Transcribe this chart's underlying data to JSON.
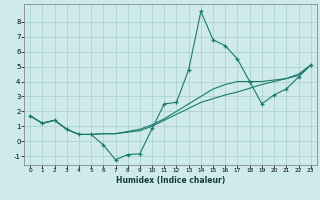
{
  "xlabel": "Humidex (Indice chaleur)",
  "line_color": "#1a7a6e",
  "bg_color": "#ceeaea",
  "grid_color": "#aacece",
  "xlim": [
    -0.5,
    23.5
  ],
  "ylim": [
    -1.6,
    9.2
  ],
  "xticks": [
    0,
    1,
    2,
    3,
    4,
    5,
    6,
    7,
    8,
    9,
    10,
    11,
    12,
    13,
    14,
    15,
    16,
    17,
    18,
    19,
    20,
    21,
    22,
    23
  ],
  "yticks": [
    -1,
    0,
    1,
    2,
    3,
    4,
    5,
    6,
    7,
    8
  ],
  "series1": [
    [
      0,
      1.7
    ],
    [
      1,
      1.2
    ],
    [
      2,
      1.4
    ],
    [
      3,
      0.8
    ],
    [
      4,
      0.45
    ],
    [
      5,
      0.45
    ],
    [
      6,
      -0.25
    ],
    [
      7,
      -1.25
    ],
    [
      8,
      -0.9
    ],
    [
      9,
      -0.85
    ],
    [
      10,
      0.85
    ],
    [
      11,
      2.5
    ],
    [
      12,
      2.6
    ],
    [
      13,
      4.8
    ],
    [
      14,
      8.7
    ],
    [
      15,
      6.8
    ],
    [
      16,
      6.4
    ],
    [
      17,
      5.5
    ],
    [
      18,
      4.0
    ],
    [
      19,
      2.5
    ],
    [
      20,
      3.1
    ],
    [
      21,
      3.5
    ],
    [
      22,
      4.3
    ],
    [
      23,
      5.1
    ]
  ],
  "series2": [
    [
      0,
      1.7
    ],
    [
      1,
      1.2
    ],
    [
      2,
      1.4
    ],
    [
      3,
      0.8
    ],
    [
      4,
      0.45
    ],
    [
      5,
      0.45
    ],
    [
      6,
      0.5
    ],
    [
      7,
      0.5
    ],
    [
      8,
      0.6
    ],
    [
      9,
      0.7
    ],
    [
      10,
      1.0
    ],
    [
      11,
      1.4
    ],
    [
      12,
      1.8
    ],
    [
      13,
      2.2
    ],
    [
      14,
      2.6
    ],
    [
      15,
      2.85
    ],
    [
      16,
      3.1
    ],
    [
      17,
      3.3
    ],
    [
      18,
      3.55
    ],
    [
      19,
      3.8
    ],
    [
      20,
      4.0
    ],
    [
      21,
      4.2
    ],
    [
      22,
      4.5
    ],
    [
      23,
      5.1
    ]
  ],
  "series3": [
    [
      0,
      1.7
    ],
    [
      1,
      1.2
    ],
    [
      2,
      1.4
    ],
    [
      3,
      0.8
    ],
    [
      4,
      0.45
    ],
    [
      5,
      0.45
    ],
    [
      6,
      0.5
    ],
    [
      7,
      0.5
    ],
    [
      8,
      0.65
    ],
    [
      9,
      0.8
    ],
    [
      10,
      1.1
    ],
    [
      11,
      1.5
    ],
    [
      12,
      2.0
    ],
    [
      13,
      2.5
    ],
    [
      14,
      3.0
    ],
    [
      15,
      3.5
    ],
    [
      16,
      3.8
    ],
    [
      17,
      4.0
    ],
    [
      18,
      4.0
    ],
    [
      19,
      4.0
    ],
    [
      20,
      4.1
    ],
    [
      21,
      4.2
    ],
    [
      22,
      4.4
    ],
    [
      23,
      5.1
    ]
  ]
}
